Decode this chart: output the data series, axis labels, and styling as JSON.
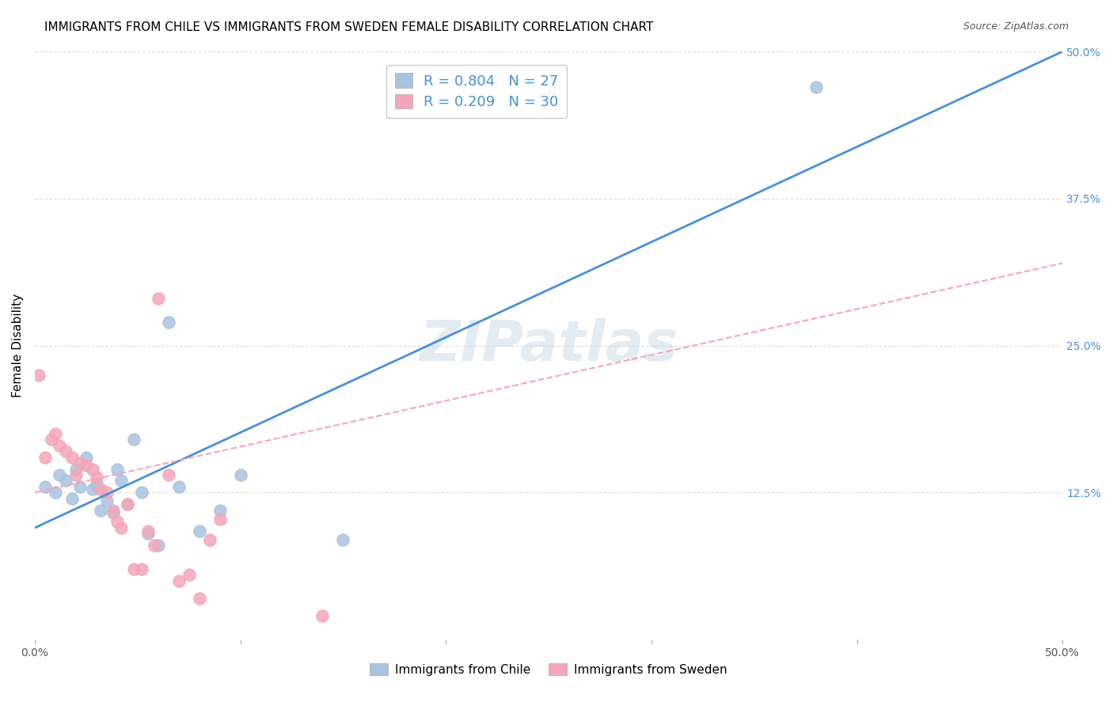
{
  "title": "IMMIGRANTS FROM CHILE VS IMMIGRANTS FROM SWEDEN FEMALE DISABILITY CORRELATION CHART",
  "source": "Source: ZipAtlas.com",
  "xlabel_bottom": "",
  "ylabel": "Female Disability",
  "x_min": 0.0,
  "x_max": 0.5,
  "y_min": 0.0,
  "y_max": 0.5,
  "x_ticks": [
    0.0,
    0.1,
    0.2,
    0.3,
    0.4,
    0.5
  ],
  "x_tick_labels": [
    "0.0%",
    "",
    "",
    "",
    "",
    "50.0%"
  ],
  "y_tick_labels_right": [
    "50.0%",
    "37.5%",
    "25.0%",
    "12.5%",
    ""
  ],
  "y_ticks_right": [
    0.5,
    0.375,
    0.25,
    0.125,
    0.0
  ],
  "chile_R": 0.804,
  "chile_N": 27,
  "sweden_R": 0.209,
  "sweden_N": 30,
  "chile_color": "#a8c4e0",
  "sweden_color": "#f4a7b9",
  "chile_line_color": "#4a90d9",
  "sweden_line_color": "#f4a7b9",
  "watermark": "ZIPatlas",
  "chile_scatter_x": [
    0.005,
    0.01,
    0.012,
    0.015,
    0.018,
    0.02,
    0.022,
    0.025,
    0.028,
    0.03,
    0.032,
    0.035,
    0.038,
    0.04,
    0.042,
    0.045,
    0.048,
    0.052,
    0.055,
    0.06,
    0.065,
    0.07,
    0.08,
    0.09,
    0.1,
    0.15,
    0.38
  ],
  "chile_scatter_y": [
    0.13,
    0.125,
    0.14,
    0.135,
    0.12,
    0.145,
    0.13,
    0.155,
    0.128,
    0.132,
    0.11,
    0.118,
    0.108,
    0.145,
    0.135,
    0.115,
    0.17,
    0.125,
    0.09,
    0.08,
    0.27,
    0.13,
    0.092,
    0.11,
    0.14,
    0.085,
    0.47
  ],
  "sweden_scatter_x": [
    0.002,
    0.005,
    0.008,
    0.01,
    0.012,
    0.015,
    0.018,
    0.02,
    0.022,
    0.025,
    0.028,
    0.03,
    0.032,
    0.035,
    0.038,
    0.04,
    0.042,
    0.045,
    0.048,
    0.052,
    0.055,
    0.058,
    0.06,
    0.065,
    0.07,
    0.075,
    0.08,
    0.085,
    0.09,
    0.14
  ],
  "sweden_scatter_y": [
    0.225,
    0.155,
    0.17,
    0.175,
    0.165,
    0.16,
    0.155,
    0.14,
    0.15,
    0.148,
    0.145,
    0.138,
    0.128,
    0.125,
    0.11,
    0.1,
    0.095,
    0.115,
    0.06,
    0.06,
    0.092,
    0.08,
    0.29,
    0.14,
    0.05,
    0.055,
    0.035,
    0.085,
    0.102,
    0.02
  ],
  "chile_line_x": [
    0.0,
    0.5
  ],
  "chile_line_y_start": 0.095,
  "chile_line_y_end": 0.5,
  "sweden_line_x": [
    0.0,
    0.5
  ],
  "sweden_line_y_start": 0.125,
  "sweden_line_y_end": 0.32,
  "background_color": "#ffffff",
  "grid_color": "#dddddd"
}
